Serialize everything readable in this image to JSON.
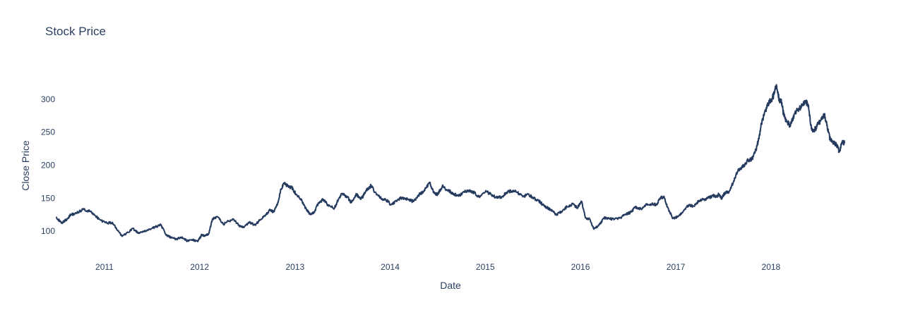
{
  "chart_data": {
    "type": "line",
    "title": "Stock Price",
    "xlabel": "Date",
    "ylabel": "Close Price",
    "x_range": [
      "2010-07-01",
      "2018-10-10"
    ],
    "ylim": [
      68,
      333
    ],
    "x_ticks": [
      "2011",
      "2012",
      "2013",
      "2014",
      "2015",
      "2016",
      "2017",
      "2018"
    ],
    "y_ticks": [
      100,
      150,
      200,
      250,
      300
    ],
    "grid": false,
    "legend": "none",
    "line_color": "#243a5e",
    "series": [
      {
        "x": [
          "2010-07-01",
          "2010-07-20",
          "2010-08-10",
          "2010-08-25",
          "2010-09-15",
          "2010-10-10",
          "2010-11-05",
          "2010-11-25",
          "2010-12-15",
          "2011-01-10",
          "2011-02-01",
          "2011-02-20",
          "2011-03-10",
          "2011-04-01",
          "2011-04-20",
          "2011-05-10",
          "2011-06-01",
          "2011-06-25",
          "2011-07-15",
          "2011-08-05",
          "2011-08-25",
          "2011-09-15",
          "2011-10-05",
          "2011-10-25",
          "2011-11-15",
          "2011-12-05",
          "2011-12-25",
          "2012-01-10",
          "2012-01-20",
          "2012-02-05",
          "2012-02-20",
          "2012-03-10",
          "2012-04-01",
          "2012-04-20",
          "2012-05-10",
          "2012-06-01",
          "2012-06-20",
          "2012-07-10",
          "2012-08-01",
          "2012-08-20",
          "2012-09-10",
          "2012-09-25",
          "2012-10-10",
          "2012-10-25",
          "2012-11-08",
          "2012-11-20",
          "2012-12-05",
          "2012-12-20",
          "2013-01-05",
          "2013-01-25",
          "2013-02-10",
          "2013-03-01",
          "2013-03-15",
          "2013-04-01",
          "2013-04-20",
          "2013-05-10",
          "2013-06-01",
          "2013-06-15",
          "2013-07-01",
          "2013-07-20",
          "2013-08-05",
          "2013-08-25",
          "2013-09-10",
          "2013-10-01",
          "2013-10-20",
          "2013-11-10",
          "2013-12-01",
          "2013-12-20",
          "2014-01-05",
          "2014-01-25",
          "2014-02-15",
          "2014-03-10",
          "2014-04-01",
          "2014-04-20",
          "2014-05-10",
          "2014-06-01",
          "2014-06-15",
          "2014-07-01",
          "2014-07-20",
          "2014-08-10",
          "2014-09-01",
          "2014-09-20",
          "2014-10-10",
          "2014-11-01",
          "2014-11-20",
          "2014-12-10",
          "2015-01-05",
          "2015-01-25",
          "2015-02-15",
          "2015-03-05",
          "2015-03-25",
          "2015-04-15",
          "2015-05-05",
          "2015-05-25",
          "2015-06-15",
          "2015-07-05",
          "2015-07-25",
          "2015-08-10",
          "2015-08-25",
          "2015-09-10",
          "2015-09-30",
          "2015-10-20",
          "2015-11-10",
          "2015-12-01",
          "2015-12-20",
          "2016-01-05",
          "2016-01-20",
          "2016-02-05",
          "2016-02-20",
          "2016-03-10",
          "2016-04-01",
          "2016-04-20",
          "2016-05-10",
          "2016-06-01",
          "2016-06-20",
          "2016-07-10",
          "2016-07-30",
          "2016-08-20",
          "2016-09-10",
          "2016-10-01",
          "2016-10-20",
          "2016-11-01",
          "2016-11-15",
          "2016-12-01",
          "2016-12-20",
          "2017-01-10",
          "2017-02-01",
          "2017-02-20",
          "2017-03-10",
          "2017-04-01",
          "2017-04-20",
          "2017-05-10",
          "2017-05-25",
          "2017-06-05",
          "2017-06-15",
          "2017-06-25",
          "2017-07-10",
          "2017-07-25",
          "2017-08-10",
          "2017-08-25",
          "2017-09-10",
          "2017-09-20",
          "2017-10-05",
          "2017-10-20",
          "2017-11-05",
          "2017-11-15",
          "2017-11-25",
          "2017-12-05",
          "2017-12-15",
          "2017-12-25",
          "2018-01-05",
          "2018-01-15",
          "2018-01-22",
          "2018-02-01",
          "2018-02-10",
          "2018-02-20",
          "2018-03-01",
          "2018-03-15",
          "2018-04-01",
          "2018-04-15",
          "2018-05-01",
          "2018-05-15",
          "2018-05-25",
          "2018-06-05",
          "2018-06-15",
          "2018-07-01",
          "2018-07-15",
          "2018-07-25",
          "2018-08-05",
          "2018-08-15",
          "2018-08-25",
          "2018-09-05",
          "2018-09-12",
          "2018-09-20",
          "2018-10-01",
          "2018-10-10"
        ],
        "y": [
          121,
          112,
          118,
          125,
          127,
          133,
          130,
          124,
          117,
          112,
          113,
          101,
          92,
          98,
          104,
          97,
          99,
          103,
          106,
          110,
          94,
          90,
          88,
          91,
          85,
          87,
          84,
          95,
          92,
          96,
          119,
          122,
          110,
          115,
          118,
          108,
          106,
          113,
          109,
          117,
          124,
          132,
          129,
          140,
          163,
          172,
          168,
          166,
          156,
          147,
          135,
          125,
          128,
          143,
          148,
          138,
          135,
          147,
          157,
          152,
          143,
          156,
          148,
          161,
          169,
          155,
          149,
          146,
          140,
          145,
          151,
          148,
          145,
          155,
          160,
          174,
          160,
          155,
          168,
          162,
          157,
          153,
          160,
          162,
          158,
          151,
          160,
          155,
          150,
          152,
          159,
          161,
          158,
          152,
          156,
          150,
          146,
          140,
          136,
          132,
          125,
          130,
          137,
          141,
          135,
          145,
          120,
          118,
          104,
          108,
          120,
          119,
          118,
          120,
          125,
          128,
          136,
          134,
          140,
          141,
          140,
          150,
          152,
          136,
          119,
          122,
          131,
          140,
          138,
          146,
          148,
          151,
          154,
          152,
          156,
          150,
          159,
          160,
          175,
          190,
          197,
          200,
          208,
          209,
          224,
          240,
          262,
          275,
          287,
          297,
          300,
          310,
          322,
          300,
          296,
          274,
          268,
          260,
          278,
          285,
          290,
          296,
          290,
          255,
          252,
          262,
          270,
          276,
          258,
          240,
          235,
          232,
          230,
          220,
          235,
          234
        ]
      }
    ]
  }
}
